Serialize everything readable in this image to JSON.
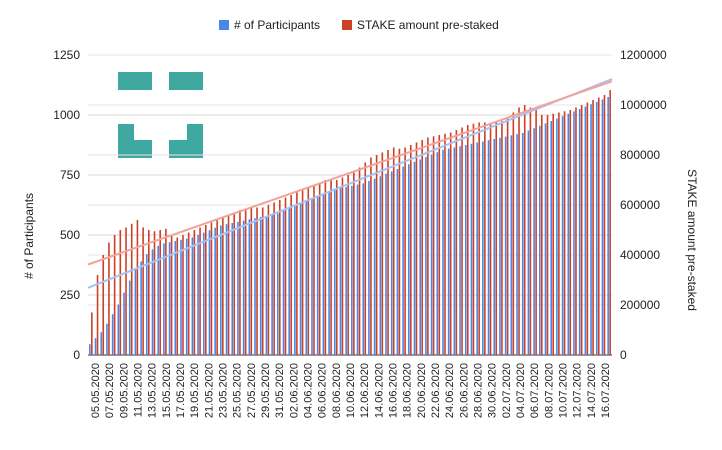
{
  "chart_data": {
    "type": "bar",
    "legend_position": "top",
    "grid": true,
    "colors": {
      "participants": "#4a86e8",
      "stake": "#cc4125",
      "trend_participants": "#a4c2f4",
      "trend_stake": "#f4a39a",
      "logo": "#3ea8a0",
      "grid": "#d9d9d9",
      "axis_text": "#222222"
    },
    "left_axis": {
      "label": "# of Participants",
      "min": 0,
      "max": 1250,
      "ticks": [
        "0",
        "250",
        "500",
        "750",
        "1000",
        "1250"
      ]
    },
    "right_axis": {
      "label": "STAKE amount pre-staked",
      "min": 0,
      "max": 1200000,
      "ticks": [
        "0",
        "200000",
        "400000",
        "600000",
        "800000",
        "1000000",
        "1200000"
      ]
    },
    "x_tick_labels": [
      "05.05.2020",
      "07.05.2020",
      "09.05.2020",
      "11.05.2020",
      "13.05.2020",
      "15.05.2020",
      "17.05.2020",
      "19.05.2020",
      "21.05.2020",
      "23.05.2020",
      "25.05.2020",
      "27.05.2020",
      "29.05.2020",
      "31.05.2020",
      "02.06.2020",
      "04.06.2020",
      "06.06.2020",
      "08.06.2020",
      "10.06.2020",
      "12.06.2020",
      "14.06.2020",
      "16.06.2020",
      "18.06.2020",
      "20.06.2020",
      "22.06.2020",
      "24.06.2020",
      "26.06.2020",
      "28.06.2020",
      "30.06.2020",
      "02.07.2020",
      "04.07.2020",
      "06.07.2020",
      "08.07.2020",
      "10.07.2020",
      "12.07.2020",
      "14.07.2020",
      "16.07.2020"
    ],
    "series": [
      {
        "name": "# of Participants",
        "axis": "left",
        "values": [
          45,
          70,
          95,
          130,
          170,
          210,
          260,
          310,
          360,
          390,
          420,
          440,
          455,
          465,
          470,
          475,
          480,
          485,
          490,
          500,
          510,
          520,
          530,
          540,
          545,
          550,
          555,
          560,
          565,
          570,
          575,
          580,
          585,
          590,
          600,
          610,
          620,
          630,
          640,
          650,
          660,
          670,
          680,
          690,
          695,
          700,
          705,
          710,
          715,
          725,
          735,
          745,
          755,
          765,
          775,
          785,
          795,
          805,
          815,
          825,
          835,
          845,
          855,
          860,
          865,
          870,
          875,
          880,
          885,
          890,
          895,
          900,
          905,
          910,
          915,
          920,
          925,
          935,
          945,
          955,
          965,
          975,
          985,
          995,
          1005,
          1015,
          1025,
          1035,
          1045,
          1055,
          1065,
          1075
        ]
      },
      {
        "name": "STAKE amount pre-staked",
        "axis": "right",
        "values": [
          170000,
          320000,
          400000,
          450000,
          480000,
          500000,
          510000,
          525000,
          540000,
          510000,
          500000,
          495000,
          500000,
          505000,
          480000,
          470000,
          480000,
          490000,
          500000,
          510000,
          520000,
          530000,
          540000,
          550000,
          560000,
          570000,
          580000,
          580000,
          590000,
          590000,
          590000,
          600000,
          610000,
          620000,
          630000,
          640000,
          650000,
          660000,
          670000,
          680000,
          690000,
          700000,
          700000,
          700000,
          710000,
          720000,
          730000,
          750000,
          770000,
          790000,
          800000,
          810000,
          820000,
          830000,
          825000,
          830000,
          840000,
          850000,
          860000,
          870000,
          875000,
          880000,
          885000,
          890000,
          900000,
          910000,
          920000,
          925000,
          930000,
          930000,
          925000,
          930000,
          935000,
          950000,
          970000,
          990000,
          1000000,
          990000,
          980000,
          960000,
          960000,
          965000,
          970000,
          975000,
          980000,
          990000,
          1000000,
          1010000,
          1020000,
          1030000,
          1040000,
          1060000
        ]
      }
    ],
    "trendlines": [
      {
        "series": "# of Participants",
        "axis": "left",
        "start": 280,
        "end": 1150
      },
      {
        "series": "STAKE amount pre-staked",
        "axis": "right",
        "start": 362000,
        "end": 1095000
      }
    ]
  }
}
